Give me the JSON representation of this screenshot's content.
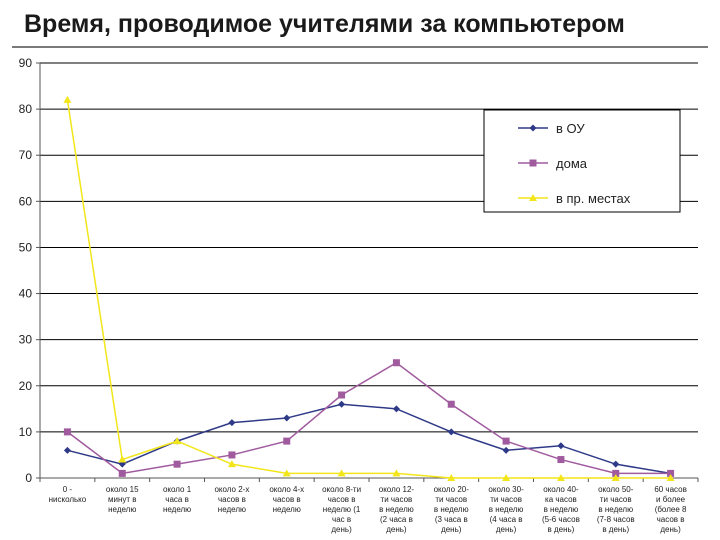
{
  "page": {
    "title": "Время, проводимое учителями за компьютером"
  },
  "chart_data": {
    "type": "line",
    "categories": [
      [
        "0 -",
        "нисколько"
      ],
      [
        "около 15",
        "минут в",
        "неделю"
      ],
      [
        "около 1",
        "часа в",
        "неделю"
      ],
      [
        "около 2-х",
        "часов в",
        "неделю"
      ],
      [
        "около 4-х",
        "часов в",
        "неделю"
      ],
      [
        "около 8-ти",
        "часов в",
        "неделю (1",
        "час в",
        "день)"
      ],
      [
        "около 12-",
        "ти часов",
        "в неделю",
        "(2 часа в",
        "день)"
      ],
      [
        "около 20-",
        "ти часов",
        "в неделю",
        "(3 часа в",
        "день)"
      ],
      [
        "около 30-",
        "ти часов",
        "в неделю",
        "(4 часа в",
        "день)"
      ],
      [
        "около 40-",
        "ка часов",
        "в неделю",
        "(5-6 часов",
        "в день)"
      ],
      [
        "около 50-",
        "ти часов",
        "в неделю",
        "(7-8 часов",
        "в день)"
      ],
      [
        "60 часов",
        "и более",
        "(более 8",
        "часов в",
        "день)"
      ]
    ],
    "series": [
      {
        "name": "в ОУ",
        "color": "#2e3a87",
        "marker": "diamond",
        "values": [
          6,
          3,
          8,
          12,
          13,
          16,
          15,
          10,
          6,
          7,
          3,
          1
        ]
      },
      {
        "name": "дома",
        "color": "#a05a9e",
        "marker": "square",
        "values": [
          10,
          1,
          3,
          5,
          8,
          18,
          25,
          16,
          8,
          4,
          1,
          1
        ]
      },
      {
        "name": "в пр. местах",
        "color": "#f2e61a",
        "marker": "triangle",
        "values": [
          82,
          4,
          8,
          3,
          1,
          1,
          1,
          0,
          0,
          0,
          0,
          0
        ]
      }
    ],
    "yticks": [
      "0",
      "10",
      "20",
      "30",
      "40",
      "50",
      "60",
      "70",
      "80",
      "90"
    ],
    "ylim": [
      0,
      90
    ],
    "grid": true,
    "legend_position": "top-right",
    "title": "",
    "xlabel": "",
    "ylabel": ""
  }
}
